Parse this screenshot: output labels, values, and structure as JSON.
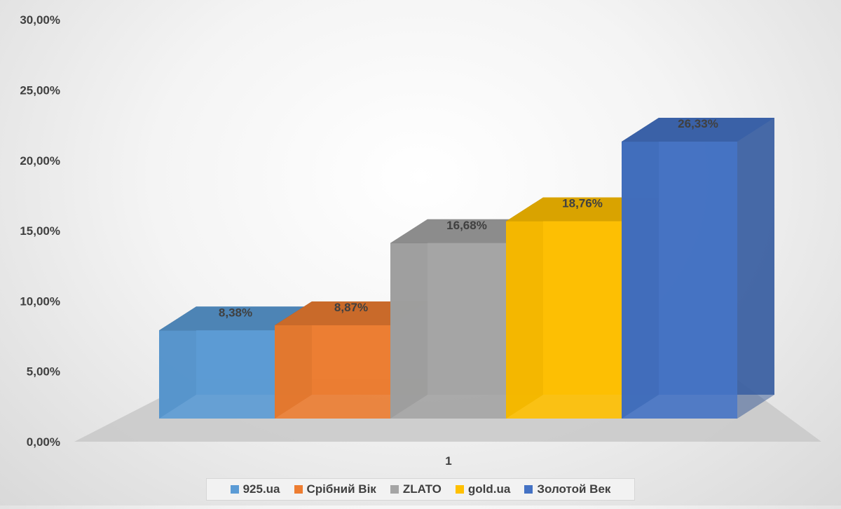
{
  "chart_data": {
    "type": "bar",
    "categories": [
      "1"
    ],
    "series": [
      {
        "name": "925.ua",
        "values": [
          8.38
        ],
        "label": "8,38%",
        "color": "#5b9bd5"
      },
      {
        "name": "Срібний Вік",
        "values": [
          8.87
        ],
        "label": "8,87%",
        "color": "#ed7d31"
      },
      {
        "name": "ZLATO",
        "values": [
          16.68
        ],
        "label": "16,68%",
        "color": "#a5a5a5"
      },
      {
        "name": "gold.ua",
        "values": [
          18.76
        ],
        "label": "18,76%",
        "color": "#ffc000"
      },
      {
        "name": "Золотой Век",
        "values": [
          26.33
        ],
        "label": "26,33%",
        "color": "#4472c4"
      }
    ],
    "y_ticks": [
      "0,00%",
      "5,00%",
      "10,00%",
      "15,00%",
      "20,00%",
      "25,00%",
      "30,00%"
    ],
    "ylim": [
      0,
      30
    ],
    "legend": "bottom",
    "grid": false,
    "style": "3d-column"
  }
}
